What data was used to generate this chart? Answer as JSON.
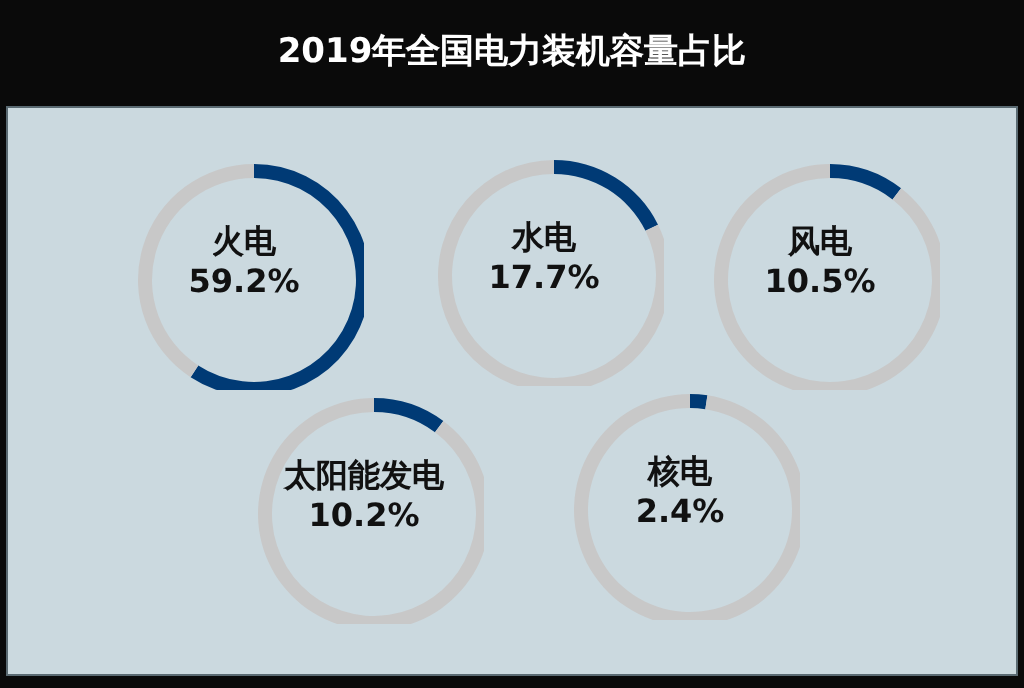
{
  "chart_data": [
    {
      "type": "other",
      "title": "2019年全国电力装机容量占比"
    },
    {
      "type": "donut",
      "title": "火电",
      "categories": [
        null,
        null
      ],
      "values": [
        59.2,
        40.8
      ],
      "annotations": [
        "59.2%"
      ],
      "colors": [
        "#003a75",
        "#c8c8c8"
      ]
    },
    {
      "type": "donut",
      "title": "水电",
      "categories": [
        null,
        null
      ],
      "values": [
        17.7,
        82.3
      ],
      "annotations": [
        "17.7%"
      ],
      "colors": [
        "#003a75",
        "#c8c8c8"
      ]
    },
    {
      "type": "donut",
      "title": "风电",
      "categories": [
        null,
        null
      ],
      "values": [
        10.5,
        89.5
      ],
      "annotations": [
        "10.5%"
      ],
      "colors": [
        "#003a75",
        "#c8c8c8"
      ]
    },
    {
      "type": "donut",
      "title": "太阳能发电",
      "categories": [
        null,
        null
      ],
      "values": [
        10.2,
        89.8
      ],
      "annotations": [
        "10.2%"
      ],
      "colors": [
        "#003a75",
        "#c8c8c8"
      ]
    },
    {
      "type": "donut",
      "title": "核电",
      "categories": [
        null,
        null
      ],
      "values": [
        2.4,
        97.6
      ],
      "annotations": [
        "2.4%"
      ],
      "colors": [
        "#003a75",
        "#c8c8c8"
      ]
    }
  ]
}
